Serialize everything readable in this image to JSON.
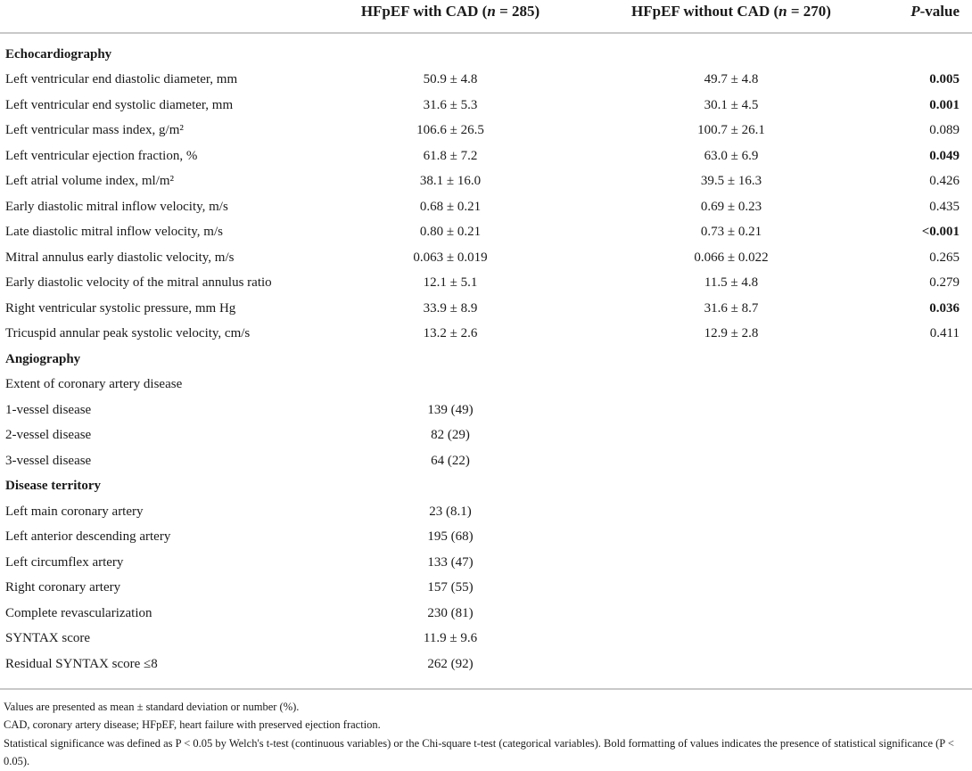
{
  "table": {
    "header": {
      "col_with_cad": {
        "pre": "HFpEF with CAD (",
        "n": "n",
        "post": " = 285)"
      },
      "col_without_cad": {
        "pre": "HFpEF without CAD (",
        "n": "n",
        "post": " = 270)"
      },
      "col_pvalue": {
        "p": "P",
        "suffix": "-value"
      }
    },
    "rows": [
      {
        "type": "section",
        "label": "Echocardiography",
        "with_cad": "",
        "without_cad": "",
        "p_value": "",
        "p_bold": false
      },
      {
        "type": "data",
        "label": "Left ventricular end diastolic diameter, mm",
        "with_cad": "50.9 ± 4.8",
        "without_cad": "49.7 ± 4.8",
        "p_value": "0.005",
        "p_bold": true
      },
      {
        "type": "data",
        "label": "Left ventricular end systolic diameter, mm",
        "with_cad": "31.6 ± 5.3",
        "without_cad": "30.1 ± 4.5",
        "p_value": "0.001",
        "p_bold": true
      },
      {
        "type": "data",
        "label": "Left ventricular mass index, g/m²",
        "with_cad": "106.6 ± 26.5",
        "without_cad": "100.7 ± 26.1",
        "p_value": "0.089",
        "p_bold": false
      },
      {
        "type": "data",
        "label": "Left ventricular ejection fraction, %",
        "with_cad": "61.8 ± 7.2",
        "without_cad": "63.0 ± 6.9",
        "p_value": "0.049",
        "p_bold": true
      },
      {
        "type": "data",
        "label": "Left atrial volume index, ml/m²",
        "with_cad": "38.1 ± 16.0",
        "without_cad": "39.5 ± 16.3",
        "p_value": "0.426",
        "p_bold": false
      },
      {
        "type": "data",
        "label": "Early diastolic mitral inflow velocity, m/s",
        "with_cad": "0.68 ± 0.21",
        "without_cad": "0.69 ± 0.23",
        "p_value": "0.435",
        "p_bold": false
      },
      {
        "type": "data",
        "label": "Late diastolic mitral inflow velocity, m/s",
        "with_cad": "0.80 ± 0.21",
        "without_cad": "0.73 ± 0.21",
        "p_value": "<0.001",
        "p_bold": true
      },
      {
        "type": "data",
        "label": "Mitral annulus early diastolic velocity, m/s",
        "with_cad": "0.063 ± 0.019",
        "without_cad": "0.066 ± 0.022",
        "p_value": "0.265",
        "p_bold": false
      },
      {
        "type": "data",
        "label": "Early diastolic velocity of the mitral annulus ratio",
        "with_cad": "12.1 ± 5.1",
        "without_cad": "11.5 ± 4.8",
        "p_value": "0.279",
        "p_bold": false
      },
      {
        "type": "data",
        "label": "Right ventricular systolic pressure, mm Hg",
        "with_cad": "33.9 ± 8.9",
        "without_cad": "31.6 ± 8.7",
        "p_value": "0.036",
        "p_bold": true
      },
      {
        "type": "data",
        "label": "Tricuspid annular peak systolic velocity, cm/s",
        "with_cad": "13.2 ± 2.6",
        "without_cad": "12.9 ± 2.8",
        "p_value": "0.411",
        "p_bold": false
      },
      {
        "type": "section",
        "label": "Angiography",
        "with_cad": "",
        "without_cad": "",
        "p_value": "",
        "p_bold": false
      },
      {
        "type": "subheader",
        "label": "Extent of coronary artery disease",
        "with_cad": "",
        "without_cad": "",
        "p_value": "",
        "p_bold": false
      },
      {
        "type": "data",
        "label": "1-vessel disease",
        "with_cad": "139 (49)",
        "without_cad": "",
        "p_value": "",
        "p_bold": false
      },
      {
        "type": "data",
        "label": "2-vessel disease",
        "with_cad": "82 (29)",
        "without_cad": "",
        "p_value": "",
        "p_bold": false
      },
      {
        "type": "data",
        "label": "3-vessel disease",
        "with_cad": "64 (22)",
        "without_cad": "",
        "p_value": "",
        "p_bold": false
      },
      {
        "type": "section",
        "label": "Disease territory",
        "with_cad": "",
        "without_cad": "",
        "p_value": "",
        "p_bold": false
      },
      {
        "type": "data",
        "label": "Left main coronary artery",
        "with_cad": "23 (8.1)",
        "without_cad": "",
        "p_value": "",
        "p_bold": false
      },
      {
        "type": "data",
        "label": "Left anterior descending artery",
        "with_cad": "195 (68)",
        "without_cad": "",
        "p_value": "",
        "p_bold": false
      },
      {
        "type": "data",
        "label": "Left circumflex artery",
        "with_cad": "133 (47)",
        "without_cad": "",
        "p_value": "",
        "p_bold": false
      },
      {
        "type": "data",
        "label": "Right coronary artery",
        "with_cad": "157 (55)",
        "without_cad": "",
        "p_value": "",
        "p_bold": false
      },
      {
        "type": "data",
        "label": "Complete revascularization",
        "with_cad": "230 (81)",
        "without_cad": "",
        "p_value": "",
        "p_bold": false
      },
      {
        "type": "data",
        "label": "SYNTAX score",
        "with_cad": "11.9 ± 9.6",
        "without_cad": "",
        "p_value": "",
        "p_bold": false
      },
      {
        "type": "data",
        "label": "Residual SYNTAX score ≤8",
        "with_cad": "262 (92)",
        "without_cad": "",
        "p_value": "",
        "p_bold": false
      }
    ],
    "footnotes": [
      "Values are presented as mean ± standard deviation or number (%).",
      "CAD, coronary artery disease; HFpEF, heart failure with preserved ejection fraction.",
      "Statistical significance was defined as P < 0.05 by Welch's t-test (continuous variables) or the Chi-square t-test (categorical variables). Bold formatting of values indicates the presence of statistical significance (P < 0.05)."
    ]
  },
  "colors": {
    "text": "#1a1a1a",
    "rule": "#c9c9c9",
    "background": "#ffffff"
  }
}
